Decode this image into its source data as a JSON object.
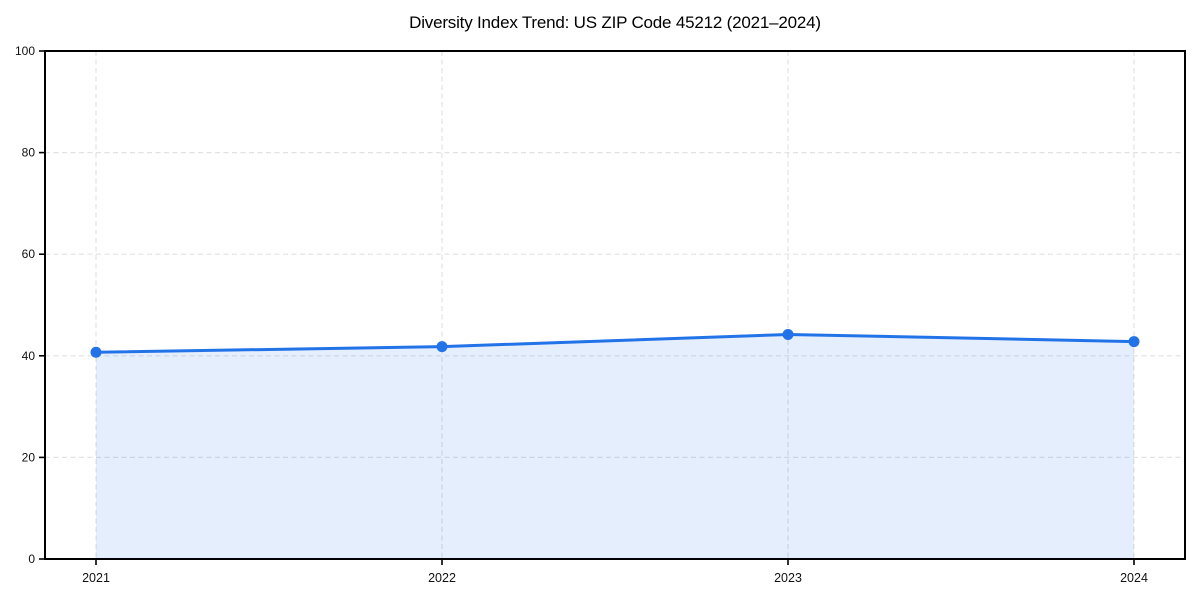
{
  "chart_data": {
    "type": "area",
    "title": "Diversity Index Trend: US ZIP Code 45212 (2021–2024)",
    "categories": [
      "2021",
      "2022",
      "2023",
      "2024"
    ],
    "series": [
      {
        "name": "Diversity Index",
        "values": [
          40.7,
          41.8,
          44.2,
          42.8
        ]
      }
    ],
    "xlabel": "",
    "ylabel": "",
    "ylim": [
      0,
      100
    ],
    "yticks": [
      0,
      20,
      40,
      60,
      80,
      100
    ],
    "grid": {
      "style": "dashed",
      "axes": "both"
    },
    "legend": "none",
    "marker": "circle",
    "colors": {
      "line": "#2373e8",
      "marker": "#2373e8",
      "fill": "rgba(35,115,232,0.12)",
      "grid": "#e2e2e2",
      "spine": "#000000",
      "tick_label": "#111111",
      "title": "#000000",
      "background": "#ffffff"
    }
  }
}
